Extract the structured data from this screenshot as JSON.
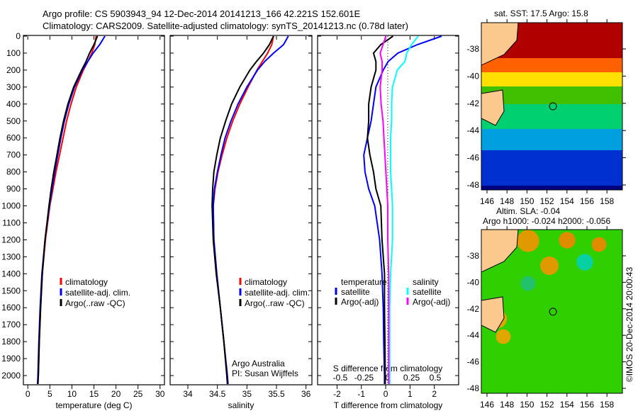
{
  "title_line1": "Argo profile: CS 5903943_94 12-Dec-2014 20141213_166 42.221S 152.601E",
  "title_line2": "Climatology: CARS2009. Satellite-adjusted climatology: synTS_20141213.nc (0.78d later)",
  "colors": {
    "climatology": "#ff0000",
    "satellite": "#0000ff",
    "argo": "#000000",
    "sal_satellite": "#00ffff",
    "sal_argo": "#ff00ff"
  },
  "legend": {
    "climatology": "climatology",
    "satellite_adj": "satellite-adj. clim.",
    "argo": "Argo(..raw -QC)",
    "diff_temp_title": "temperature",
    "diff_sal_title": "salinity",
    "diff_satellite": "satellite",
    "diff_argo": "Argo(-adj)"
  },
  "credit": {
    "line1": "Argo Australia",
    "line2": "PI: Susan Wijffels"
  },
  "map_top_title": "sat. SST: 17.5 Argo: 15.8",
  "map_bottom_title1": "Altim. SLA: -0.04",
  "map_bottom_title2": "Argo h1000: -0.024 h2000: -0.056",
  "imos_stamp": "©IMOS 20-Dec-2014 20:00:43",
  "chart_data": [
    {
      "type": "line",
      "name": "temperature",
      "xlabel": "temperature (deg C)",
      "ylabel": "depth",
      "xlim": [
        -1,
        31
      ],
      "ylim": [
        2050,
        0
      ],
      "xticks": [
        "0",
        "5",
        "10",
        "15",
        "20",
        "25",
        "30"
      ],
      "xtickvals": [
        0,
        5,
        10,
        15,
        20,
        25,
        30
      ],
      "yticks": [
        0,
        100,
        200,
        300,
        400,
        500,
        600,
        700,
        800,
        900,
        1000,
        1100,
        1200,
        1300,
        1400,
        1500,
        1600,
        1700,
        1800,
        1900,
        2000
      ],
      "depth": [
        0,
        50,
        100,
        150,
        200,
        300,
        400,
        500,
        600,
        700,
        800,
        900,
        1000,
        1200,
        1400,
        1600,
        1800,
        2000,
        2050
      ],
      "series": [
        {
          "name": "climatology",
          "color": "#ff0000",
          "values": [
            15.5,
            15.2,
            14.5,
            13.6,
            12.6,
            11.0,
            9.8,
            8.8,
            8.0,
            7.2,
            6.4,
            5.7,
            5.0,
            4.0,
            3.3,
            2.9,
            2.6,
            2.4,
            2.3
          ]
        },
        {
          "name": "satellite-adj. clim.",
          "color": "#0000ff",
          "values": [
            17.5,
            16.3,
            14.8,
            13.6,
            12.4,
            10.6,
            9.3,
            8.3,
            7.5,
            6.8,
            6.1,
            5.5,
            4.9,
            3.9,
            3.2,
            2.8,
            2.5,
            2.3,
            2.2
          ]
        },
        {
          "name": "Argo",
          "color": "#000000",
          "values": [
            15.8,
            15.0,
            14.0,
            13.2,
            12.2,
            10.4,
            9.1,
            8.1,
            7.3,
            6.6,
            5.9,
            5.3,
            4.8,
            3.9,
            3.3,
            2.9,
            2.6,
            2.4,
            2.3
          ]
        }
      ]
    },
    {
      "type": "line",
      "name": "salinity",
      "xlabel": "salinity",
      "xlim": [
        33.7,
        36.1
      ],
      "ylim": [
        2050,
        0
      ],
      "xticks": [
        "34",
        "34.5",
        "35",
        "35.5",
        "36"
      ],
      "xtickvals": [
        34,
        34.5,
        35,
        35.5,
        36
      ],
      "depth": [
        0,
        50,
        100,
        150,
        200,
        300,
        400,
        500,
        600,
        700,
        800,
        900,
        1000,
        1200,
        1400,
        1600,
        1800,
        2000,
        2050
      ],
      "series": [
        {
          "name": "climatology",
          "color": "#ff0000",
          "values": [
            35.45,
            35.42,
            35.35,
            35.26,
            35.17,
            35.02,
            34.88,
            34.76,
            34.66,
            34.58,
            34.51,
            34.46,
            34.43,
            34.44,
            34.49,
            34.55,
            34.61,
            34.66,
            34.67
          ]
        },
        {
          "name": "satellite-adj. clim.",
          "color": "#0000ff",
          "values": [
            35.7,
            35.62,
            35.45,
            35.3,
            35.18,
            35.0,
            34.85,
            34.73,
            34.63,
            34.56,
            34.5,
            34.45,
            34.43,
            34.44,
            34.49,
            34.55,
            34.61,
            34.67,
            34.68
          ]
        },
        {
          "name": "Argo",
          "color": "#000000",
          "values": [
            35.45,
            35.38,
            35.28,
            35.16,
            35.05,
            34.88,
            34.74,
            34.64,
            34.55,
            34.49,
            34.44,
            34.42,
            34.41,
            34.43,
            34.48,
            34.55,
            34.61,
            34.66,
            34.67
          ]
        }
      ]
    },
    {
      "type": "line",
      "name": "differences",
      "xlabel": "T difference from climatology",
      "x2label": "S difference from climatology",
      "xlim": [
        -2.8,
        3.0
      ],
      "x2lim": [
        -0.7,
        0.75
      ],
      "ylim": [
        2050,
        0
      ],
      "xticks": [
        "-2",
        "-1",
        "0",
        "1",
        "2"
      ],
      "xtickvals": [
        -2,
        -1,
        0,
        1,
        2
      ],
      "x2ticks": [
        "-0.5",
        "-0.25",
        "0",
        "0.25",
        "0.5"
      ],
      "x2tickvals": [
        -0.5,
        -0.25,
        0,
        0.25,
        0.5
      ],
      "depth": [
        0,
        50,
        100,
        150,
        200,
        300,
        400,
        500,
        600,
        700,
        800,
        900,
        1000,
        1200,
        1400,
        1600,
        1800,
        2000,
        2050
      ],
      "series": [
        {
          "name": "T satellite",
          "axis": "T",
          "color": "#0000ff",
          "values": [
            2.3,
            1.3,
            0.5,
            0.1,
            -0.1,
            -0.4,
            -0.5,
            -0.6,
            -0.75,
            -0.9,
            -0.85,
            -0.7,
            -0.45,
            -0.25,
            -0.15,
            -0.1,
            -0.08,
            -0.05,
            -0.05
          ]
        },
        {
          "name": "T Argo(-adj)",
          "axis": "T",
          "color": "#000000",
          "values": [
            0.3,
            -0.2,
            -0.5,
            -0.4,
            -0.4,
            -0.6,
            -0.7,
            -0.7,
            -0.75,
            -0.65,
            -0.5,
            -0.4,
            -0.2,
            -0.15,
            -0.05,
            -0.05,
            -0.03,
            -0.02,
            -0.02
          ]
        },
        {
          "name": "S satellite",
          "axis": "S",
          "color": "#00ffff",
          "values": [
            0.32,
            0.25,
            0.2,
            0.18,
            0.1,
            0.05,
            0.04,
            0.04,
            0.03,
            0.03,
            0.03,
            0.04,
            0.05,
            0.05,
            0.03,
            0.02,
            0.02,
            0.02,
            0.02
          ]
        },
        {
          "name": "S Argo(-adj)",
          "axis": "S",
          "color": "#ff00ff",
          "values": [
            -0.02,
            -0.05,
            -0.08,
            -0.06,
            -0.06,
            -0.08,
            -0.07,
            -0.05,
            -0.04,
            -0.03,
            -0.02,
            -0.01,
            0.0,
            0.0,
            0.01,
            0.01,
            0.01,
            0.01,
            0.01
          ]
        }
      ]
    },
    {
      "type": "heatmap",
      "name": "sat SST map",
      "xticks": [
        "146",
        "148",
        "150",
        "152",
        "154",
        "156",
        "158"
      ],
      "yticks": [
        "-38",
        "-40",
        "-42",
        "-44",
        "-46",
        "-48"
      ],
      "marker": {
        "lon": 152.6,
        "lat": -42.22
      }
    },
    {
      "type": "heatmap",
      "name": "altimetry SLA map",
      "xticks": [
        "146",
        "148",
        "150",
        "152",
        "154",
        "156",
        "158"
      ],
      "yticks": [
        "-38",
        "-40",
        "-42",
        "-44",
        "-46",
        "-48"
      ],
      "marker": {
        "lon": 152.6,
        "lat": -42.22
      }
    }
  ]
}
